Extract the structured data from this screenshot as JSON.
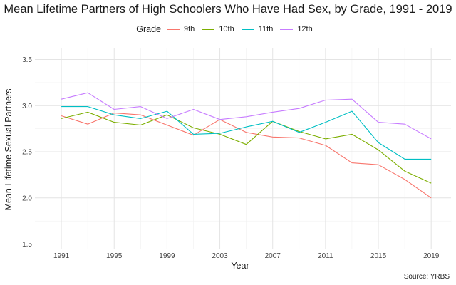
{
  "chart_data": {
    "type": "line",
    "title": "Mean Lifetime Partners of High Schoolers Who Have Had Sex, by Grade, 1991 - 2019",
    "xlabel": "Year",
    "ylabel": "Mean Lifetime Sexual Partners",
    "legend_title": "Grade",
    "legend_position": "top",
    "caption": "Source: YRBS",
    "xlim": [
      1989,
      2020.5
    ],
    "ylim": [
      1.45,
      3.62
    ],
    "x_ticks": [
      1991,
      1995,
      1999,
      2003,
      2007,
      2011,
      2015,
      2019
    ],
    "y_ticks": [
      1.5,
      2.0,
      2.5,
      3.0,
      3.5
    ],
    "y_tick_labels": [
      "1.5",
      "2.0",
      "2.5",
      "3.0",
      "3.5"
    ],
    "grid": true,
    "x": [
      1991,
      1993,
      1995,
      1997,
      1999,
      2001,
      2003,
      2005,
      2007,
      2009,
      2011,
      2013,
      2015,
      2017,
      2019
    ],
    "series": [
      {
        "name": "9th",
        "color": "#F8766D",
        "values": [
          2.89,
          2.8,
          2.92,
          2.9,
          2.79,
          2.68,
          2.85,
          2.71,
          2.66,
          2.65,
          2.57,
          2.38,
          2.36,
          2.2,
          2.0
        ]
      },
      {
        "name": "10th",
        "color": "#7CAE00",
        "values": [
          2.86,
          2.93,
          2.82,
          2.79,
          2.9,
          2.76,
          2.69,
          2.58,
          2.83,
          2.72,
          2.64,
          2.69,
          2.52,
          2.29,
          2.16
        ]
      },
      {
        "name": "11th",
        "color": "#00BFC4",
        "values": [
          2.99,
          2.99,
          2.9,
          2.86,
          2.94,
          2.69,
          2.7,
          2.77,
          2.83,
          2.71,
          2.82,
          2.94,
          2.6,
          2.42,
          2.42
        ]
      },
      {
        "name": "12th",
        "color": "#C77CFF",
        "values": [
          3.07,
          3.14,
          2.96,
          2.99,
          2.86,
          2.96,
          2.85,
          2.88,
          2.93,
          2.97,
          3.06,
          3.07,
          2.82,
          2.8,
          2.64
        ]
      }
    ]
  }
}
